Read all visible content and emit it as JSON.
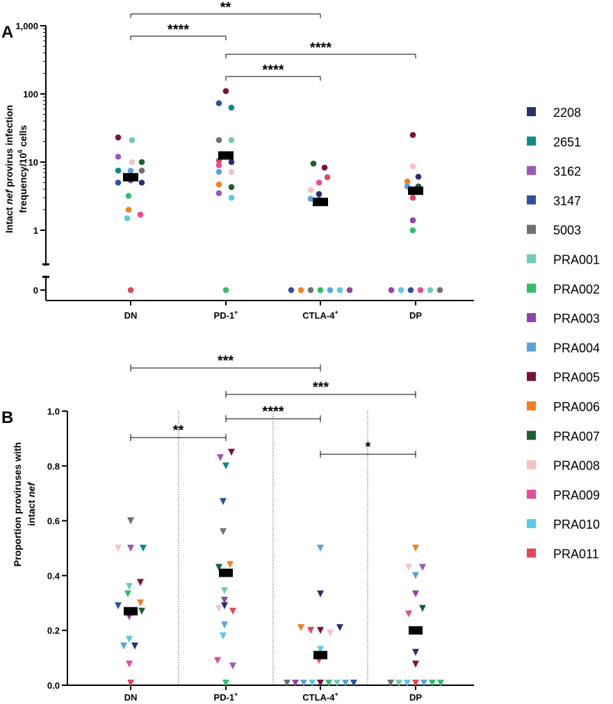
{
  "legend": [
    {
      "label": "2208",
      "color": "#2b2f6e"
    },
    {
      "label": "2651",
      "color": "#0f8a88"
    },
    {
      "label": "3162",
      "color": "#9b59b6"
    },
    {
      "label": "3147",
      "color": "#2f4fa5"
    },
    {
      "label": "5003",
      "color": "#707070"
    },
    {
      "label": "PRA001",
      "color": "#6ecdb4"
    },
    {
      "label": "PRA002",
      "color": "#2fbf6a"
    },
    {
      "label": "PRA003",
      "color": "#8e44ad"
    },
    {
      "label": "PRA004",
      "color": "#5aa2dc"
    },
    {
      "label": "PRA005",
      "color": "#7a1240"
    },
    {
      "label": "PRA006",
      "color": "#f28022"
    },
    {
      "label": "PRA007",
      "color": "#1a6130"
    },
    {
      "label": "PRA008",
      "color": "#f7c0c5"
    },
    {
      "label": "PRA009",
      "color": "#e84a98"
    },
    {
      "label": "PRA010",
      "color": "#5ac8e8"
    },
    {
      "label": "PRA011",
      "color": "#e0475a"
    }
  ],
  "chart_data": [
    {
      "panel": "A",
      "type": "scatter",
      "y_scale": "log",
      "ylabel": "Intact nef provirus infection frequency/10^6 cells",
      "ylabel_line1_pre": "Intact ",
      "ylabel_line1_em": "nef",
      "ylabel_line1_post": " provirus infection",
      "ylabel_line2_pre": "frequency/10",
      "ylabel_line2_sup": "6",
      "ylabel_line2_post": " cells",
      "yticks": [
        {
          "v": 1,
          "label": "1"
        },
        {
          "v": 10,
          "label": "10"
        },
        {
          "v": 100,
          "label": "100"
        },
        {
          "v": 1000,
          "label": "1,000"
        }
      ],
      "zero_label": "0",
      "categories": [
        {
          "base": "DN",
          "sup": ""
        },
        {
          "base": "PD-1",
          "sup": "+"
        },
        {
          "base": "CTLA-4",
          "sup": "+"
        },
        {
          "base": "DP",
          "sup": ""
        }
      ],
      "medians": [
        6.0,
        12.5,
        2.6,
        3.8
      ],
      "points": [
        [
          {
            "v": 23,
            "c": "PRA005",
            "dx": -18
          },
          {
            "v": 21,
            "c": "PRA001",
            "dx": 2
          },
          {
            "v": 12,
            "c": "3162",
            "dx": -18
          },
          {
            "v": 10,
            "c": "PRA008",
            "dx": 2
          },
          {
            "v": 10,
            "c": "PRA007",
            "dx": 16
          },
          {
            "v": 7.5,
            "c": "2651",
            "dx": -18
          },
          {
            "v": 7.5,
            "c": "PRA004",
            "dx": 0
          },
          {
            "v": 7.5,
            "c": "5003",
            "dx": 16
          },
          {
            "v": 5,
            "c": "3147",
            "dx": -18
          },
          {
            "v": 5.4,
            "c": "PRA003",
            "dx": 0
          },
          {
            "v": 5,
            "c": "2208",
            "dx": 16
          },
          {
            "v": 3.2,
            "c": "PRA002",
            "dx": -3
          },
          {
            "v": 2.0,
            "c": "PRA006",
            "dx": -3
          },
          {
            "v": 1.5,
            "c": "PRA010",
            "dx": -5
          },
          {
            "v": 1.7,
            "c": "PRA009",
            "dx": 14
          }
        ],
        [
          {
            "v": 110,
            "c": "PRA005",
            "dx": 0
          },
          {
            "v": 73,
            "c": "3147",
            "dx": -10
          },
          {
            "v": 63,
            "c": "2651",
            "dx": 8
          },
          {
            "v": 21,
            "c": "5003",
            "dx": -10
          },
          {
            "v": 21,
            "c": "PRA001",
            "dx": 8
          },
          {
            "v": 13,
            "c": "PRA003",
            "dx": 0
          },
          {
            "v": 10.5,
            "c": "PRA011",
            "dx": -10
          },
          {
            "v": 10,
            "c": "2208",
            "dx": 8
          },
          {
            "v": 9,
            "c": "PRA009",
            "dx": -10
          },
          {
            "v": 7.2,
            "c": "PRA004",
            "dx": -10
          },
          {
            "v": 7.2,
            "c": "PRA008",
            "dx": 8
          },
          {
            "v": 4.7,
            "c": "PRA006",
            "dx": -10
          },
          {
            "v": 4.3,
            "c": "PRA007",
            "dx": 8
          },
          {
            "v": 3.5,
            "c": "3162",
            "dx": -10
          },
          {
            "v": 3.0,
            "c": "PRA010",
            "dx": 8
          }
        ],
        [
          {
            "v": 9.5,
            "c": "PRA007",
            "dx": -10
          },
          {
            "v": 8.3,
            "c": "PRA005",
            "dx": 6
          },
          {
            "v": 6,
            "c": "PRA011",
            "dx": 10
          },
          {
            "v": 5,
            "c": "PRA009",
            "dx": -2
          },
          {
            "v": 3.9,
            "c": "PRA008",
            "dx": -14
          },
          {
            "v": 3.4,
            "c": "2208",
            "dx": -2
          },
          {
            "v": 2.9,
            "c": "PRA004",
            "dx": -14
          },
          {
            "v": 2.8,
            "c": "PRA003",
            "dx": -2
          }
        ],
        [
          {
            "v": 25,
            "c": "PRA005",
            "dx": -4
          },
          {
            "v": 8.7,
            "c": "PRA008",
            "dx": -4
          },
          {
            "v": 6.1,
            "c": "2208",
            "dx": 4
          },
          {
            "v": 5.2,
            "c": "PRA006",
            "dx": -12
          },
          {
            "v": 4.4,
            "c": "PRA004",
            "dx": -12
          },
          {
            "v": 4.4,
            "c": "PRA007",
            "dx": 4
          },
          {
            "v": 3.0,
            "c": "PRA011",
            "dx": -4
          },
          {
            "v": 1.4,
            "c": "PRA003",
            "dx": -4
          },
          {
            "v": 1.0,
            "c": "PRA002",
            "dx": -4
          }
        ]
      ],
      "zeros": [
        [
          "PRA011"
        ],
        [
          "PRA002"
        ],
        [
          "3147",
          "PRA006",
          "5003",
          "PRA002",
          "PRA004",
          "PRA010",
          "PRA003"
        ],
        [
          "PRA003",
          "PRA010",
          "3147",
          "PRA009",
          "PRA001",
          "5003"
        ]
      ],
      "significance": [
        {
          "from": 0,
          "to": 2,
          "y": 1.9,
          "label": "**"
        },
        {
          "from": 0,
          "to": 1,
          "y": 1.72,
          "label": "****"
        },
        {
          "from": 1,
          "to": 3,
          "y": 1.54,
          "label": "****"
        },
        {
          "from": 1,
          "to": 2,
          "y": 1.36,
          "label": "****"
        }
      ]
    },
    {
      "panel": "B",
      "type": "scatter",
      "ylabel": "Proportion proviruses with intact nef",
      "ylabel_line1": "Proportion proviruses with",
      "ylabel_line2_pre": "intact ",
      "ylabel_line2_em": "nef",
      "ylim": [
        0,
        1.0
      ],
      "yticks": [
        {
          "v": 0,
          "label": "0.0"
        },
        {
          "v": 0.2,
          "label": "0.2"
        },
        {
          "v": 0.4,
          "label": "0.4"
        },
        {
          "v": 0.6,
          "label": "0.6"
        },
        {
          "v": 0.8,
          "label": "0.8"
        },
        {
          "v": 1.0,
          "label": "1.0"
        }
      ],
      "categories": [
        {
          "base": "DN",
          "sup": ""
        },
        {
          "base": "PD-1",
          "sup": "+"
        },
        {
          "base": "CTLA-4",
          "sup": "+"
        },
        {
          "base": "DP",
          "sup": ""
        }
      ],
      "medians": [
        0.27,
        0.41,
        0.11,
        0.2
      ],
      "points": [
        [
          {
            "v": 0.6,
            "c": "5003",
            "dx": 0
          },
          {
            "v": 0.5,
            "c": "PRA008",
            "dx": -18
          },
          {
            "v": 0.5,
            "c": "3162",
            "dx": 0
          },
          {
            "v": 0.5,
            "c": "2651",
            "dx": 18
          },
          {
            "v": 0.375,
            "c": "PRA005",
            "dx": 14
          },
          {
            "v": 0.36,
            "c": "PRA001",
            "dx": -2
          },
          {
            "v": 0.333,
            "c": "PRA002",
            "dx": -4
          },
          {
            "v": 0.3,
            "c": "PRA006",
            "dx": 14
          },
          {
            "v": 0.29,
            "c": "3147",
            "dx": -18
          },
          {
            "v": 0.27,
            "c": "PRA007",
            "dx": 16
          },
          {
            "v": 0.25,
            "c": "PRA003",
            "dx": -2
          },
          {
            "v": 0.167,
            "c": "PRA010",
            "dx": -2
          },
          {
            "v": 0.143,
            "c": "PRA004",
            "dx": -10
          },
          {
            "v": 0.143,
            "c": "2208",
            "dx": 6
          },
          {
            "v": 0.077,
            "c": "PRA009",
            "dx": -2
          }
        ],
        [
          {
            "v": 0.85,
            "c": "PRA005",
            "dx": 8
          },
          {
            "v": 0.83,
            "c": "3162",
            "dx": -8
          },
          {
            "v": 0.8,
            "c": "2651",
            "dx": 0
          },
          {
            "v": 0.67,
            "c": "3147",
            "dx": -4
          },
          {
            "v": 0.56,
            "c": "5003",
            "dx": -4
          },
          {
            "v": 0.43,
            "c": "PRA007",
            "dx": -10
          },
          {
            "v": 0.44,
            "c": "PRA006",
            "dx": 6
          },
          {
            "v": 0.345,
            "c": "PRA001",
            "dx": -2
          },
          {
            "v": 0.31,
            "c": "PRA003",
            "dx": -2
          },
          {
            "v": 0.29,
            "c": "2208",
            "dx": -2
          },
          {
            "v": 0.28,
            "c": "PRA008",
            "dx": -10
          },
          {
            "v": 0.27,
            "c": "PRA011",
            "dx": 10
          },
          {
            "v": 0.22,
            "c": "PRA004",
            "dx": -2
          },
          {
            "v": 0.18,
            "c": "PRA010",
            "dx": -4
          },
          {
            "v": 0.09,
            "c": "PRA009",
            "dx": -12
          },
          {
            "v": 0.07,
            "c": "3162",
            "dx": 10
          }
        ],
        [
          {
            "v": 0.5,
            "c": "PRA004",
            "dx": 0
          },
          {
            "v": 0.333,
            "c": "2208",
            "dx": 0
          },
          {
            "v": 0.21,
            "c": "PRA006",
            "dx": -28
          },
          {
            "v": 0.2,
            "c": "PRA011",
            "dx": -14
          },
          {
            "v": 0.2,
            "c": "PRA005",
            "dx": 0
          },
          {
            "v": 0.19,
            "c": "PRA008",
            "dx": 14
          },
          {
            "v": 0.21,
            "c": "2208",
            "dx": 28
          },
          {
            "v": 0.13,
            "c": "PRA010",
            "dx": 0
          },
          {
            "v": 0.09,
            "c": "PRA009",
            "dx": -2
          }
        ],
        [
          {
            "v": 0.5,
            "c": "PRA006",
            "dx": 0
          },
          {
            "v": 0.43,
            "c": "PRA008",
            "dx": -10
          },
          {
            "v": 0.43,
            "c": "3162",
            "dx": 10
          },
          {
            "v": 0.4,
            "c": "PRA004",
            "dx": 0
          },
          {
            "v": 0.333,
            "c": "PRA003",
            "dx": 0
          },
          {
            "v": 0.28,
            "c": "PRA007",
            "dx": 10
          },
          {
            "v": 0.26,
            "c": "PRA009",
            "dx": -10
          },
          {
            "v": 0.12,
            "c": "2208",
            "dx": 0
          },
          {
            "v": 0.077,
            "c": "PRA005",
            "dx": 0
          }
        ]
      ],
      "zeros": [
        [
          "PRA011"
        ],
        [
          "PRA002"
        ],
        [
          "5003",
          "PRA003",
          "PRA004",
          "PRA010",
          "PRA005",
          "PRA002",
          "PRA001",
          "PRA004",
          "3147"
        ],
        [
          "5003",
          "PRA001",
          "PRA010",
          "PRA011",
          "PRA004",
          "PRA002",
          "PRA002"
        ]
      ],
      "significance": [
        {
          "from": 0,
          "to": 2,
          "y": 1.27,
          "label": "***"
        },
        {
          "from": 1,
          "to": 3,
          "y": 1.14,
          "label": "***"
        },
        {
          "from": 1,
          "to": 2,
          "y": 1.01,
          "label": "****"
        },
        {
          "from": 0,
          "to": 1,
          "y": 0.9,
          "label": "**"
        },
        {
          "from": 2,
          "to": 3,
          "y": 0.85,
          "label": "*"
        }
      ]
    }
  ],
  "panel_labels": {
    "a": "A",
    "b": "B"
  }
}
